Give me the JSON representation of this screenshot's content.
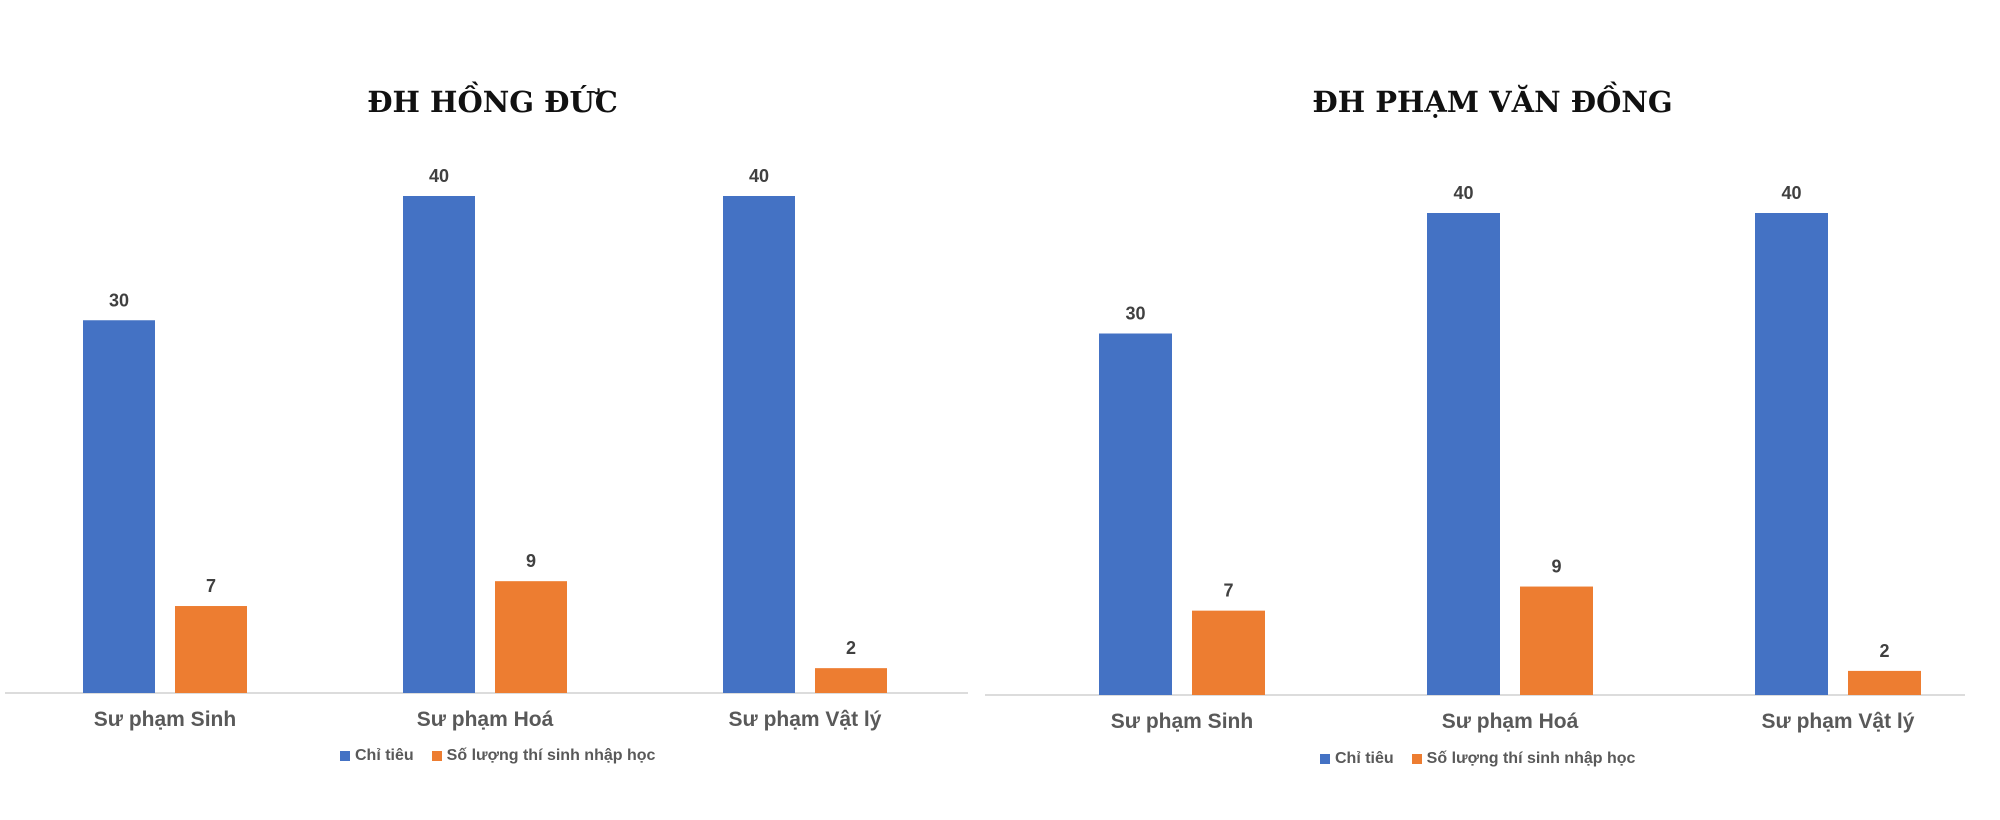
{
  "chart_data": [
    {
      "type": "bar",
      "title": "ĐH HỒNG ĐỨC",
      "categories": [
        "Sư phạm Sinh",
        "Sư phạm Hoá",
        "Sư phạm Vật lý"
      ],
      "series": [
        {
          "name": "Chỉ tiêu",
          "values": [
            30,
            40,
            40
          ],
          "color": "#4472C4"
        },
        {
          "name": "Số lượng thí sinh nhập học",
          "values": [
            7,
            9,
            2
          ],
          "color": "#ED7D31"
        }
      ],
      "xlabel": "",
      "ylabel": "",
      "ylim": [
        0,
        40
      ],
      "grid": false,
      "legend": "bottom"
    },
    {
      "type": "bar",
      "title": "ĐH PHẠM VĂN ĐỒNG",
      "categories": [
        "Sư phạm Sinh",
        "Sư phạm Hoá",
        "Sư phạm Vật lý"
      ],
      "series": [
        {
          "name": "Chỉ tiêu",
          "values": [
            30,
            40,
            40
          ],
          "color": "#4472C4"
        },
        {
          "name": "Số lượng thí sinh nhập học",
          "values": [
            7,
            9,
            2
          ],
          "color": "#ED7D31"
        }
      ],
      "xlabel": "",
      "ylabel": "",
      "ylim": [
        0,
        40
      ],
      "grid": false,
      "legend": "bottom"
    }
  ]
}
